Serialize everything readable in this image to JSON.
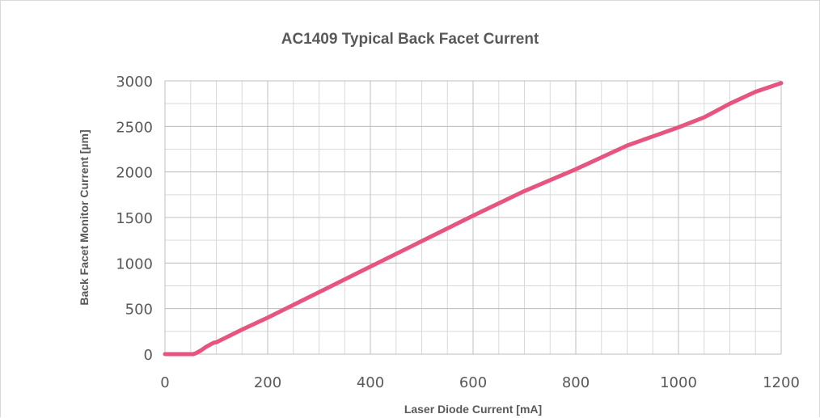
{
  "chart_data": {
    "type": "line",
    "title": "AC1409 Typical Back Facet Current",
    "xlabel": "Laser Diode Current [mA]",
    "ylabel": "Back Facet Monitor Current [µm]",
    "xlim": [
      0,
      1200
    ],
    "ylim": [
      0,
      3000
    ],
    "xticks": [
      0,
      200,
      400,
      600,
      800,
      1000,
      1200
    ],
    "yticks": [
      0,
      500,
      1000,
      1500,
      2000,
      2500,
      3000
    ],
    "x_minor_grid_step": 50,
    "y_minor_grid_step": 250,
    "grid": true,
    "series_color": "#e75480",
    "series": [
      {
        "x": [
          0,
          20,
          40,
          55,
          60,
          70,
          80,
          90,
          95,
          100,
          150,
          200,
          300,
          400,
          500,
          600,
          700,
          800,
          850,
          900,
          950,
          1000,
          1050,
          1100,
          1150,
          1200
        ],
        "y": [
          0,
          0,
          0,
          0,
          10,
          40,
          80,
          110,
          125,
          130,
          270,
          400,
          680,
          960,
          1240,
          1520,
          1790,
          2030,
          2160,
          2290,
          2390,
          2490,
          2600,
          2750,
          2880,
          2975
        ]
      }
    ]
  }
}
